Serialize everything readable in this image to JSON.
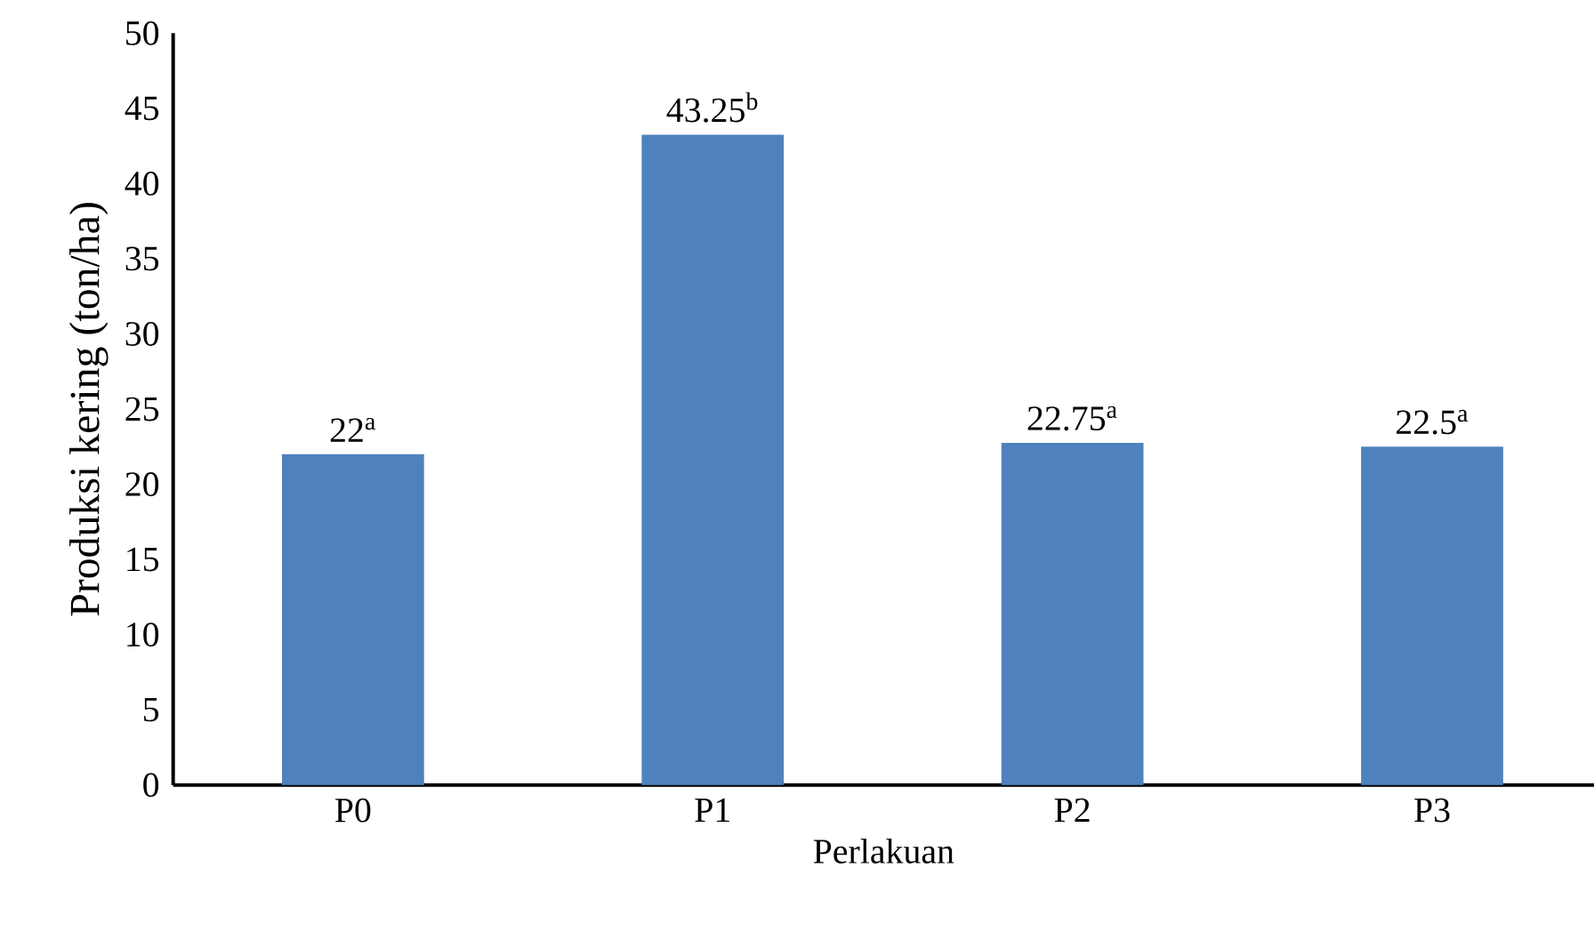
{
  "chart_data": {
    "type": "bar",
    "xlabel": "Perlakuan",
    "ylabel": "Produksi kering (ton/ha)",
    "categories": [
      "P0",
      "P1",
      "P2",
      "P3"
    ],
    "values": [
      22,
      43.25,
      22.75,
      22.5
    ],
    "value_labels": [
      "22$^{a}$",
      "43.25$^{b}$",
      "22.75$^{a}$",
      "22.5$^{a}$"
    ],
    "color": "#4f81bd",
    "ylim": [
      0,
      50
    ],
    "yticks": [
      0,
      5,
      10,
      15,
      20,
      25,
      30,
      35,
      40,
      45,
      50
    ]
  }
}
